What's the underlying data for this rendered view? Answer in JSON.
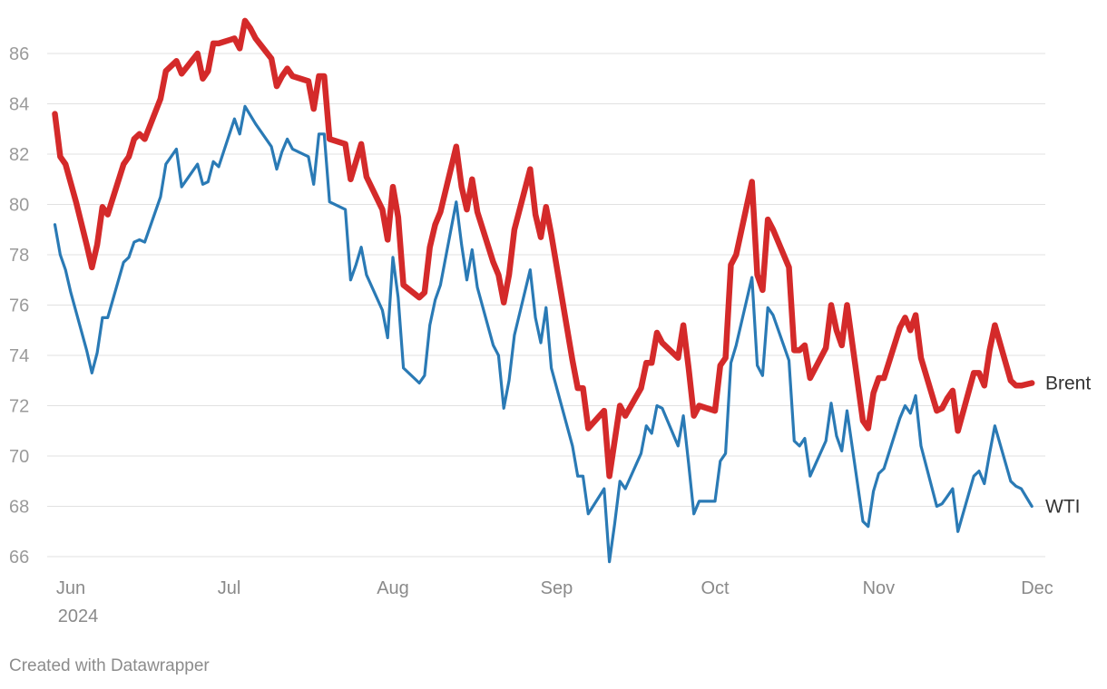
{
  "chart_data": {
    "type": "line",
    "title": "",
    "xlabel": "",
    "ylabel": "",
    "ylim": [
      66,
      87.5
    ],
    "y_ticks": [
      66,
      68,
      70,
      72,
      74,
      76,
      78,
      80,
      82,
      84,
      86
    ],
    "x_ticks": [
      {
        "date": "2024-05-31",
        "label": "Jun",
        "sublabel": "2024"
      },
      {
        "date": "2024-06-30",
        "label": "Jul",
        "sublabel": ""
      },
      {
        "date": "2024-07-31",
        "label": "Aug",
        "sublabel": ""
      },
      {
        "date": "2024-08-31",
        "label": "Sep",
        "sublabel": ""
      },
      {
        "date": "2024-09-30",
        "label": "Oct",
        "sublabel": ""
      },
      {
        "date": "2024-10-31",
        "label": "Nov",
        "sublabel": ""
      },
      {
        "date": "2024-11-30",
        "label": "Dec",
        "sublabel": ""
      }
    ],
    "grid": true,
    "legend": "end-of-line labels",
    "series": [
      {
        "name": "Brent",
        "color": "#d42a2a",
        "points": [
          [
            "2024-05-28",
            83.6
          ],
          [
            "2024-05-29",
            81.9
          ],
          [
            "2024-05-30",
            81.6
          ],
          [
            "2024-06-01",
            80.1
          ],
          [
            "2024-06-03",
            78.4
          ],
          [
            "2024-06-04",
            77.5
          ],
          [
            "2024-06-05",
            78.4
          ],
          [
            "2024-06-06",
            79.9
          ],
          [
            "2024-06-07",
            79.6
          ],
          [
            "2024-06-10",
            81.6
          ],
          [
            "2024-06-11",
            81.9
          ],
          [
            "2024-06-12",
            82.6
          ],
          [
            "2024-06-13",
            82.8
          ],
          [
            "2024-06-14",
            82.6
          ],
          [
            "2024-06-17",
            84.2
          ],
          [
            "2024-06-18",
            85.3
          ],
          [
            "2024-06-19",
            85.5
          ],
          [
            "2024-06-20",
            85.7
          ],
          [
            "2024-06-21",
            85.2
          ],
          [
            "2024-06-24",
            86.0
          ],
          [
            "2024-06-25",
            85.0
          ],
          [
            "2024-06-26",
            85.3
          ],
          [
            "2024-06-27",
            86.4
          ],
          [
            "2024-06-28",
            86.4
          ],
          [
            "2024-07-01",
            86.6
          ],
          [
            "2024-07-02",
            86.2
          ],
          [
            "2024-07-03",
            87.3
          ],
          [
            "2024-07-04",
            87.0
          ],
          [
            "2024-07-05",
            86.6
          ],
          [
            "2024-07-08",
            85.8
          ],
          [
            "2024-07-09",
            84.7
          ],
          [
            "2024-07-10",
            85.1
          ],
          [
            "2024-07-11",
            85.4
          ],
          [
            "2024-07-12",
            85.1
          ],
          [
            "2024-07-15",
            84.9
          ],
          [
            "2024-07-16",
            83.8
          ],
          [
            "2024-07-17",
            85.1
          ],
          [
            "2024-07-18",
            85.1
          ],
          [
            "2024-07-19",
            82.6
          ],
          [
            "2024-07-22",
            82.4
          ],
          [
            "2024-07-23",
            81.0
          ],
          [
            "2024-07-24",
            81.7
          ],
          [
            "2024-07-25",
            82.4
          ],
          [
            "2024-07-26",
            81.1
          ],
          [
            "2024-07-29",
            79.8
          ],
          [
            "2024-07-30",
            78.6
          ],
          [
            "2024-07-31",
            80.7
          ],
          [
            "2024-08-01",
            79.5
          ],
          [
            "2024-08-02",
            76.8
          ],
          [
            "2024-08-05",
            76.3
          ],
          [
            "2024-08-06",
            76.5
          ],
          [
            "2024-08-07",
            78.3
          ],
          [
            "2024-08-08",
            79.2
          ],
          [
            "2024-08-09",
            79.7
          ],
          [
            "2024-08-12",
            82.3
          ],
          [
            "2024-08-13",
            80.7
          ],
          [
            "2024-08-14",
            79.8
          ],
          [
            "2024-08-15",
            81.0
          ],
          [
            "2024-08-16",
            79.7
          ],
          [
            "2024-08-19",
            77.7
          ],
          [
            "2024-08-20",
            77.2
          ],
          [
            "2024-08-21",
            76.1
          ],
          [
            "2024-08-22",
            77.2
          ],
          [
            "2024-08-23",
            79.0
          ],
          [
            "2024-08-26",
            81.4
          ],
          [
            "2024-08-27",
            79.6
          ],
          [
            "2024-08-28",
            78.7
          ],
          [
            "2024-08-29",
            79.9
          ],
          [
            "2024-08-30",
            78.8
          ],
          [
            "2024-09-03",
            73.8
          ],
          [
            "2024-09-04",
            72.7
          ],
          [
            "2024-09-05",
            72.7
          ],
          [
            "2024-09-06",
            71.1
          ],
          [
            "2024-09-09",
            71.8
          ],
          [
            "2024-09-10",
            69.2
          ],
          [
            "2024-09-11",
            70.6
          ],
          [
            "2024-09-12",
            72.0
          ],
          [
            "2024-09-13",
            71.6
          ],
          [
            "2024-09-16",
            72.7
          ],
          [
            "2024-09-17",
            73.7
          ],
          [
            "2024-09-18",
            73.7
          ],
          [
            "2024-09-19",
            74.9
          ],
          [
            "2024-09-20",
            74.5
          ],
          [
            "2024-09-23",
            73.9
          ],
          [
            "2024-09-24",
            75.2
          ],
          [
            "2024-09-25",
            73.5
          ],
          [
            "2024-09-26",
            71.6
          ],
          [
            "2024-09-27",
            72.0
          ],
          [
            "2024-09-30",
            71.8
          ],
          [
            "2024-10-01",
            73.6
          ],
          [
            "2024-10-02",
            73.9
          ],
          [
            "2024-10-03",
            77.6
          ],
          [
            "2024-10-04",
            78.0
          ],
          [
            "2024-10-07",
            80.9
          ],
          [
            "2024-10-08",
            77.2
          ],
          [
            "2024-10-09",
            76.6
          ],
          [
            "2024-10-10",
            79.4
          ],
          [
            "2024-10-11",
            79.0
          ],
          [
            "2024-10-14",
            77.5
          ],
          [
            "2024-10-15",
            74.2
          ],
          [
            "2024-10-16",
            74.2
          ],
          [
            "2024-10-17",
            74.4
          ],
          [
            "2024-10-18",
            73.1
          ],
          [
            "2024-10-21",
            74.3
          ],
          [
            "2024-10-22",
            76.0
          ],
          [
            "2024-10-23",
            75.0
          ],
          [
            "2024-10-24",
            74.4
          ],
          [
            "2024-10-25",
            76.0
          ],
          [
            "2024-10-28",
            71.4
          ],
          [
            "2024-10-29",
            71.1
          ],
          [
            "2024-10-30",
            72.5
          ],
          [
            "2024-10-31",
            73.1
          ],
          [
            "2024-11-01",
            73.1
          ],
          [
            "2024-11-04",
            75.1
          ],
          [
            "2024-11-05",
            75.5
          ],
          [
            "2024-11-06",
            75.0
          ],
          [
            "2024-11-07",
            75.6
          ],
          [
            "2024-11-08",
            73.9
          ],
          [
            "2024-11-11",
            71.8
          ],
          [
            "2024-11-12",
            71.9
          ],
          [
            "2024-11-13",
            72.3
          ],
          [
            "2024-11-14",
            72.6
          ],
          [
            "2024-11-15",
            71.0
          ],
          [
            "2024-11-18",
            73.3
          ],
          [
            "2024-11-19",
            73.3
          ],
          [
            "2024-11-20",
            72.8
          ],
          [
            "2024-11-21",
            74.2
          ],
          [
            "2024-11-22",
            75.2
          ],
          [
            "2024-11-25",
            73.0
          ],
          [
            "2024-11-26",
            72.8
          ],
          [
            "2024-11-27",
            72.8
          ],
          [
            "2024-11-29",
            72.9
          ]
        ]
      },
      {
        "name": "WTI",
        "color": "#2a7ab5",
        "points": [
          [
            "2024-05-28",
            79.2
          ],
          [
            "2024-05-29",
            78.0
          ],
          [
            "2024-05-30",
            77.4
          ],
          [
            "2024-05-31",
            76.5
          ],
          [
            "2024-06-03",
            74.2
          ],
          [
            "2024-06-04",
            73.3
          ],
          [
            "2024-06-05",
            74.1
          ],
          [
            "2024-06-06",
            75.5
          ],
          [
            "2024-06-07",
            75.5
          ],
          [
            "2024-06-10",
            77.7
          ],
          [
            "2024-06-11",
            77.9
          ],
          [
            "2024-06-12",
            78.5
          ],
          [
            "2024-06-13",
            78.6
          ],
          [
            "2024-06-14",
            78.5
          ],
          [
            "2024-06-17",
            80.3
          ],
          [
            "2024-06-18",
            81.6
          ],
          [
            "2024-06-19",
            81.9
          ],
          [
            "2024-06-20",
            82.2
          ],
          [
            "2024-06-21",
            80.7
          ],
          [
            "2024-06-24",
            81.6
          ],
          [
            "2024-06-25",
            80.8
          ],
          [
            "2024-06-26",
            80.9
          ],
          [
            "2024-06-27",
            81.7
          ],
          [
            "2024-06-28",
            81.5
          ],
          [
            "2024-07-01",
            83.4
          ],
          [
            "2024-07-02",
            82.8
          ],
          [
            "2024-07-03",
            83.9
          ],
          [
            "2024-07-05",
            83.2
          ],
          [
            "2024-07-08",
            82.3
          ],
          [
            "2024-07-09",
            81.4
          ],
          [
            "2024-07-10",
            82.1
          ],
          [
            "2024-07-11",
            82.6
          ],
          [
            "2024-07-12",
            82.2
          ],
          [
            "2024-07-15",
            81.9
          ],
          [
            "2024-07-16",
            80.8
          ],
          [
            "2024-07-17",
            82.8
          ],
          [
            "2024-07-18",
            82.8
          ],
          [
            "2024-07-19",
            80.1
          ],
          [
            "2024-07-22",
            79.8
          ],
          [
            "2024-07-23",
            77.0
          ],
          [
            "2024-07-24",
            77.6
          ],
          [
            "2024-07-25",
            78.3
          ],
          [
            "2024-07-26",
            77.2
          ],
          [
            "2024-07-29",
            75.8
          ],
          [
            "2024-07-30",
            74.7
          ],
          [
            "2024-07-31",
            77.9
          ],
          [
            "2024-08-01",
            76.3
          ],
          [
            "2024-08-02",
            73.5
          ],
          [
            "2024-08-05",
            72.9
          ],
          [
            "2024-08-06",
            73.2
          ],
          [
            "2024-08-07",
            75.2
          ],
          [
            "2024-08-08",
            76.2
          ],
          [
            "2024-08-09",
            76.8
          ],
          [
            "2024-08-12",
            80.1
          ],
          [
            "2024-08-13",
            78.4
          ],
          [
            "2024-08-14",
            77.0
          ],
          [
            "2024-08-15",
            78.2
          ],
          [
            "2024-08-16",
            76.7
          ],
          [
            "2024-08-19",
            74.4
          ],
          [
            "2024-08-20",
            74.0
          ],
          [
            "2024-08-21",
            71.9
          ],
          [
            "2024-08-22",
            73.0
          ],
          [
            "2024-08-23",
            74.8
          ],
          [
            "2024-08-26",
            77.4
          ],
          [
            "2024-08-27",
            75.5
          ],
          [
            "2024-08-28",
            74.5
          ],
          [
            "2024-08-29",
            75.9
          ],
          [
            "2024-08-30",
            73.5
          ],
          [
            "2024-09-03",
            70.4
          ],
          [
            "2024-09-04",
            69.2
          ],
          [
            "2024-09-05",
            69.2
          ],
          [
            "2024-09-06",
            67.7
          ],
          [
            "2024-09-09",
            68.7
          ],
          [
            "2024-09-10",
            65.8
          ],
          [
            "2024-09-11",
            67.3
          ],
          [
            "2024-09-12",
            69.0
          ],
          [
            "2024-09-13",
            68.7
          ],
          [
            "2024-09-16",
            70.1
          ],
          [
            "2024-09-17",
            71.2
          ],
          [
            "2024-09-18",
            70.9
          ],
          [
            "2024-09-19",
            72.0
          ],
          [
            "2024-09-20",
            71.9
          ],
          [
            "2024-09-23",
            70.4
          ],
          [
            "2024-09-24",
            71.6
          ],
          [
            "2024-09-25",
            69.7
          ],
          [
            "2024-09-26",
            67.7
          ],
          [
            "2024-09-27",
            68.2
          ],
          [
            "2024-09-30",
            68.2
          ],
          [
            "2024-10-01",
            69.8
          ],
          [
            "2024-10-02",
            70.1
          ],
          [
            "2024-10-03",
            73.7
          ],
          [
            "2024-10-04",
            74.4
          ],
          [
            "2024-10-07",
            77.1
          ],
          [
            "2024-10-08",
            73.6
          ],
          [
            "2024-10-09",
            73.2
          ],
          [
            "2024-10-10",
            75.9
          ],
          [
            "2024-10-11",
            75.6
          ],
          [
            "2024-10-14",
            73.8
          ],
          [
            "2024-10-15",
            70.6
          ],
          [
            "2024-10-16",
            70.4
          ],
          [
            "2024-10-17",
            70.7
          ],
          [
            "2024-10-18",
            69.2
          ],
          [
            "2024-10-21",
            70.6
          ],
          [
            "2024-10-22",
            72.1
          ],
          [
            "2024-10-23",
            70.8
          ],
          [
            "2024-10-24",
            70.2
          ],
          [
            "2024-10-25",
            71.8
          ],
          [
            "2024-10-28",
            67.4
          ],
          [
            "2024-10-29",
            67.2
          ],
          [
            "2024-10-30",
            68.6
          ],
          [
            "2024-10-31",
            69.3
          ],
          [
            "2024-11-01",
            69.5
          ],
          [
            "2024-11-04",
            71.5
          ],
          [
            "2024-11-05",
            72.0
          ],
          [
            "2024-11-06",
            71.7
          ],
          [
            "2024-11-07",
            72.4
          ],
          [
            "2024-11-08",
            70.4
          ],
          [
            "2024-11-11",
            68.0
          ],
          [
            "2024-11-12",
            68.1
          ],
          [
            "2024-11-13",
            68.4
          ],
          [
            "2024-11-14",
            68.7
          ],
          [
            "2024-11-15",
            67.0
          ],
          [
            "2024-11-18",
            69.2
          ],
          [
            "2024-11-19",
            69.4
          ],
          [
            "2024-11-20",
            68.9
          ],
          [
            "2024-11-21",
            70.1
          ],
          [
            "2024-11-22",
            71.2
          ],
          [
            "2024-11-25",
            69.0
          ],
          [
            "2024-11-26",
            68.8
          ],
          [
            "2024-11-27",
            68.7
          ],
          [
            "2024-11-29",
            68.0
          ]
        ]
      }
    ]
  },
  "footer": {
    "credit": "Created with Datawrapper"
  }
}
